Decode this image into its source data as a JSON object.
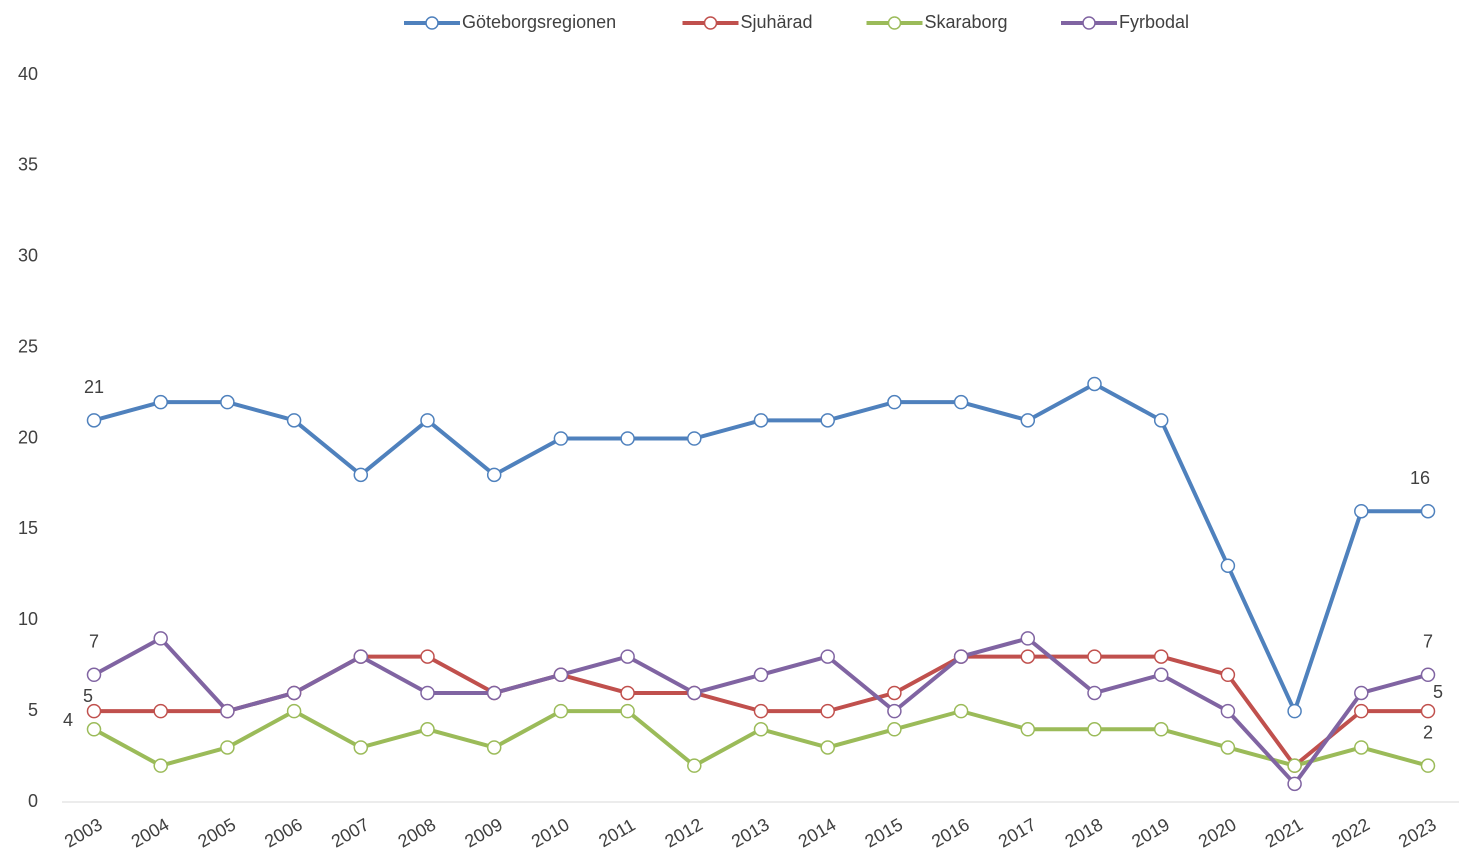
{
  "chart_data": {
    "type": "line",
    "categories": [
      "2003",
      "2004",
      "2005",
      "2006",
      "2007",
      "2008",
      "2009",
      "2010",
      "2011",
      "2012",
      "2013",
      "2014",
      "2015",
      "2016",
      "2017",
      "2018",
      "2019",
      "2020",
      "2021",
      "2022",
      "2023"
    ],
    "series": [
      {
        "name": "Göteborgsregionen",
        "color": "#4f81bd",
        "values": [
          21,
          22,
          22,
          21,
          18,
          21,
          18,
          20,
          20,
          20,
          21,
          21,
          22,
          22,
          21,
          23,
          21,
          13,
          5,
          16,
          16
        ]
      },
      {
        "name": "Sjuhärad",
        "color": "#c0504d",
        "values": [
          5,
          5,
          5,
          6,
          8,
          8,
          6,
          7,
          6,
          6,
          5,
          5,
          6,
          8,
          8,
          8,
          8,
          7,
          2,
          5,
          5
        ]
      },
      {
        "name": "Skaraborg",
        "color": "#9bbb59",
        "values": [
          4,
          2,
          3,
          5,
          3,
          4,
          3,
          5,
          5,
          2,
          4,
          3,
          4,
          5,
          4,
          4,
          4,
          3,
          2,
          3,
          2
        ]
      },
      {
        "name": "Fyrbodal",
        "color": "#8064a2",
        "values": [
          7,
          9,
          5,
          6,
          8,
          6,
          6,
          7,
          8,
          6,
          7,
          8,
          5,
          8,
          9,
          6,
          7,
          5,
          1,
          6,
          7
        ]
      }
    ],
    "ylim": [
      0,
      40
    ],
    "yticks": [
      0,
      5,
      10,
      15,
      20,
      25,
      30,
      35,
      40
    ],
    "grid": false,
    "legend": "top",
    "data_labels": "ends"
  }
}
